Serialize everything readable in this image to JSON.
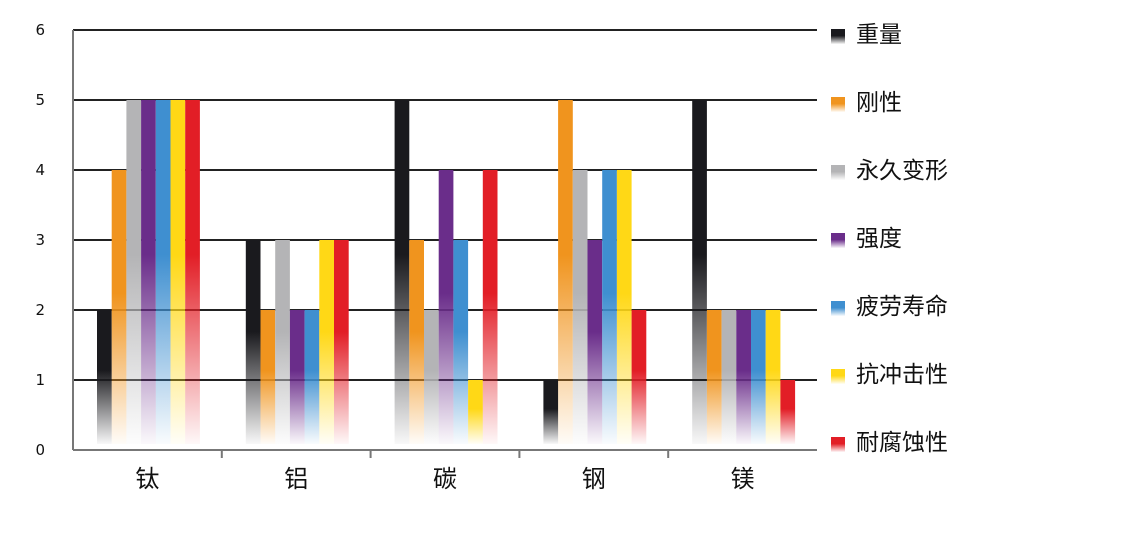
{
  "chart_data": {
    "type": "bar",
    "categories": [
      "钛",
      "铝",
      "碳",
      "钢",
      "镁"
    ],
    "series": [
      {
        "name": "重量",
        "color": "#1a1a1e",
        "values": [
          2,
          3,
          5,
          1,
          5
        ]
      },
      {
        "name": "刚性",
        "color": "#f0941e",
        "values": [
          4,
          2,
          3,
          5,
          2
        ]
      },
      {
        "name": "永久变形",
        "color": "#b4b4b6",
        "values": [
          5,
          3,
          2,
          4,
          2
        ]
      },
      {
        "name": "强度",
        "color": "#6a2d8a",
        "values": [
          5,
          2,
          4,
          3,
          2
        ]
      },
      {
        "name": "疲劳寿命",
        "color": "#3f8fd0",
        "values": [
          5,
          2,
          3,
          4,
          2
        ]
      },
      {
        "name": "抗冲击性",
        "color": "#ffd816",
        "values": [
          5,
          3,
          1,
          4,
          2
        ]
      },
      {
        "name": "耐腐蚀性",
        "color": "#e21e26",
        "values": [
          5,
          3,
          4,
          2,
          1
        ]
      }
    ],
    "yticks": [
      "0",
      "1",
      "2",
      "3",
      "4",
      "5",
      "6"
    ],
    "ylim": [
      0,
      6
    ],
    "grid": true,
    "legend": "right"
  }
}
